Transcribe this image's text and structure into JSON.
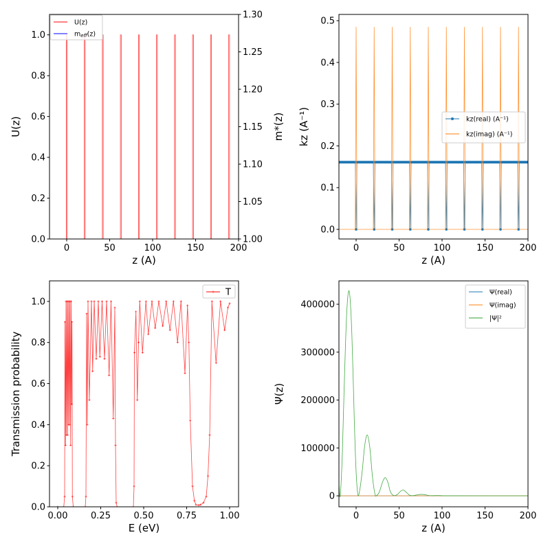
{
  "chart_data": [
    {
      "type": "line",
      "panel": "potential",
      "xlabel": "z (A)",
      "ylabel": "U(z)",
      "y2label": "m*(z)",
      "xlim": [
        -20,
        200
      ],
      "ylim": [
        0,
        1.1
      ],
      "y2lim": [
        1.0,
        1.3
      ],
      "xticks": [
        0,
        50,
        100,
        150,
        200
      ],
      "xticklabels": [
        "0",
        "50",
        "100",
        "150",
        "200"
      ],
      "yticks": [
        0,
        0.2,
        0.4,
        0.6,
        0.8,
        1.0
      ],
      "yticklabels": [
        "0.0",
        "0.2",
        "0.4",
        "0.6",
        "0.8",
        "1.0"
      ],
      "y2ticks": [
        1.0,
        1.05,
        1.1,
        1.15,
        1.2,
        1.25,
        1.3
      ],
      "y2ticklabels": [
        "1.00",
        "1.05",
        "1.10",
        "1.15",
        "1.20",
        "1.25",
        "1.30"
      ],
      "legend_position": "upper-left",
      "series": [
        {
          "name": "U(z)",
          "color": "#ff0000",
          "barrier_positions": [
            0,
            21,
            42,
            63,
            84,
            105,
            126,
            147,
            168,
            189
          ],
          "barrier_width": 1,
          "barrier_value": 1.0,
          "background_value": 0
        },
        {
          "name": "m_eff(z)",
          "legend_main": "m",
          "legend_sub": "eff",
          "legend_tail": "(z)",
          "color": "#0000ff",
          "value": 1.0
        }
      ]
    },
    {
      "type": "line",
      "panel": "wavevector",
      "xlabel": "z (A)",
      "ylabel": "kz (A⁻¹)",
      "xlim": [
        -20,
        200
      ],
      "ylim": [
        -0.023,
        0.515
      ],
      "xticks": [
        0,
        50,
        100,
        150,
        200
      ],
      "xticklabels": [
        "0",
        "50",
        "100",
        "150",
        "200"
      ],
      "yticks": [
        0,
        0.1,
        0.2,
        0.3,
        0.4,
        0.5
      ],
      "yticklabels": [
        "0.0",
        "0.1",
        "0.2",
        "0.3",
        "0.4",
        "0.5"
      ],
      "legend_position": "center-right",
      "series": [
        {
          "name": "kz(real) (A⁻¹)",
          "color": "#1f77b4",
          "value_outside": 0.161,
          "value_in_barrier": 0,
          "markers": true
        },
        {
          "name": "kz(imag) (A⁻¹)",
          "color": "#ff7f0e",
          "value_outside": 0,
          "value_in_barrier": 0.485,
          "markers": false
        }
      ],
      "barrier_positions": [
        0,
        21,
        42,
        63,
        84,
        105,
        126,
        147,
        168,
        189
      ]
    },
    {
      "type": "line",
      "panel": "transmission",
      "xlabel": "E (eV)",
      "ylabel": "Transmission probability",
      "xlim": [
        -0.048,
        1.052
      ],
      "ylim": [
        0,
        1.1
      ],
      "xticks": [
        0,
        0.25,
        0.5,
        0.75,
        1.0
      ],
      "xticklabels": [
        "0.00",
        "0.25",
        "0.50",
        "0.75",
        "1.00"
      ],
      "yticks": [
        0,
        0.2,
        0.4,
        0.6,
        0.8,
        1.0
      ],
      "yticklabels": [
        "0.0",
        "0.2",
        "0.4",
        "0.6",
        "0.8",
        "1.0"
      ],
      "legend_position": "upper-right",
      "series": [
        {
          "name": "T",
          "color": "#ff0000",
          "x": [
            0.0,
            0.035,
            0.04,
            0.042,
            0.045,
            0.048,
            0.051,
            0.054,
            0.057,
            0.06,
            0.063,
            0.066,
            0.069,
            0.072,
            0.075,
            0.078,
            0.081,
            0.083,
            0.085,
            0.09,
            0.16,
            0.164,
            0.168,
            0.172,
            0.176,
            0.184,
            0.196,
            0.203,
            0.212,
            0.224,
            0.236,
            0.245,
            0.258,
            0.272,
            0.284,
            0.299,
            0.31,
            0.323,
            0.332,
            0.336,
            0.34,
            0.345,
            0.44,
            0.444,
            0.446,
            0.455,
            0.463,
            0.47,
            0.477,
            0.493,
            0.513,
            0.527,
            0.548,
            0.567,
            0.588,
            0.611,
            0.631,
            0.653,
            0.673,
            0.697,
            0.717,
            0.74,
            0.755,
            0.763,
            0.771,
            0.784,
            0.795,
            0.804,
            0.82,
            0.831,
            0.848,
            0.864,
            0.874,
            0.884,
            0.897,
            0.921,
            0.947,
            0.971,
            0.99,
            1.0
          ],
          "y": [
            0.0,
            0.0,
            0.05,
            0.9,
            0.3,
            1.0,
            0.35,
            1.0,
            0.35,
            1.0,
            0.4,
            1.0,
            0.4,
            1.0,
            0.3,
            1.0,
            0.5,
            0.9,
            0.05,
            0.0,
            0.0,
            0.05,
            0.94,
            0.4,
            1.0,
            0.52,
            1.0,
            0.66,
            1.0,
            0.72,
            1.0,
            0.73,
            1.0,
            0.72,
            1.0,
            0.64,
            1.0,
            0.43,
            0.97,
            0.3,
            0.02,
            0.0,
            0.0,
            0.1,
            0.75,
            0.95,
            0.52,
            0.8,
            1.0,
            0.75,
            1.0,
            0.84,
            1.0,
            0.87,
            1.0,
            0.88,
            1.0,
            0.86,
            1.0,
            0.8,
            1.0,
            0.65,
            0.98,
            0.8,
            0.42,
            0.1,
            0.03,
            0.01,
            0.008,
            0.01,
            0.02,
            0.05,
            0.15,
            0.35,
            1.0,
            0.7,
            1.0,
            0.86,
            0.97,
            0.99
          ]
        }
      ]
    },
    {
      "type": "line",
      "panel": "wavefunction",
      "xlabel": "z (A)",
      "ylabel": "Ψ(z)",
      "xlim": [
        -20,
        200
      ],
      "ylim": [
        -22900,
        448800
      ],
      "xticks": [
        0,
        50,
        100,
        150,
        200
      ],
      "xticklabels": [
        "0",
        "50",
        "100",
        "150",
        "200"
      ],
      "yticks": [
        0,
        100000,
        200000,
        300000,
        400000
      ],
      "yticklabels": [
        "0",
        "100000",
        "200000",
        "300000",
        "400000"
      ],
      "legend_position": "upper-right",
      "series": [
        {
          "name": "Ψ(real)",
          "color": "#1f77b4",
          "x": [
            -20,
            200
          ],
          "y": [
            0,
            0
          ]
        },
        {
          "name": "Ψ(imag)",
          "color": "#ff7f0e",
          "x": [
            -20,
            200
          ],
          "y": [
            0,
            0
          ]
        },
        {
          "name": "|Ψ|²",
          "color": "#2ca02c",
          "x": [
            -20,
            -18.5,
            -16,
            -14,
            -11,
            -8,
            -5,
            -2,
            0,
            2,
            4,
            7,
            10,
            13,
            16,
            19,
            22,
            24,
            27,
            31,
            34,
            37,
            40,
            44,
            48,
            52,
            55,
            58,
            62,
            66,
            71,
            76,
            81,
            86,
            95,
            100,
            110,
            200
          ],
          "y": [
            25000,
            0,
            90000,
            220000,
            380000,
            427000,
            340000,
            150000,
            50000,
            3000,
            10000,
            50000,
            105000,
            127000,
            100000,
            40000,
            3000,
            1000,
            8000,
            30000,
            38000,
            28000,
            8000,
            500,
            3000,
            10000,
            12000,
            8000,
            1500,
            300,
            2000,
            3000,
            2000,
            400,
            600,
            300,
            100,
            0
          ]
        }
      ]
    }
  ]
}
